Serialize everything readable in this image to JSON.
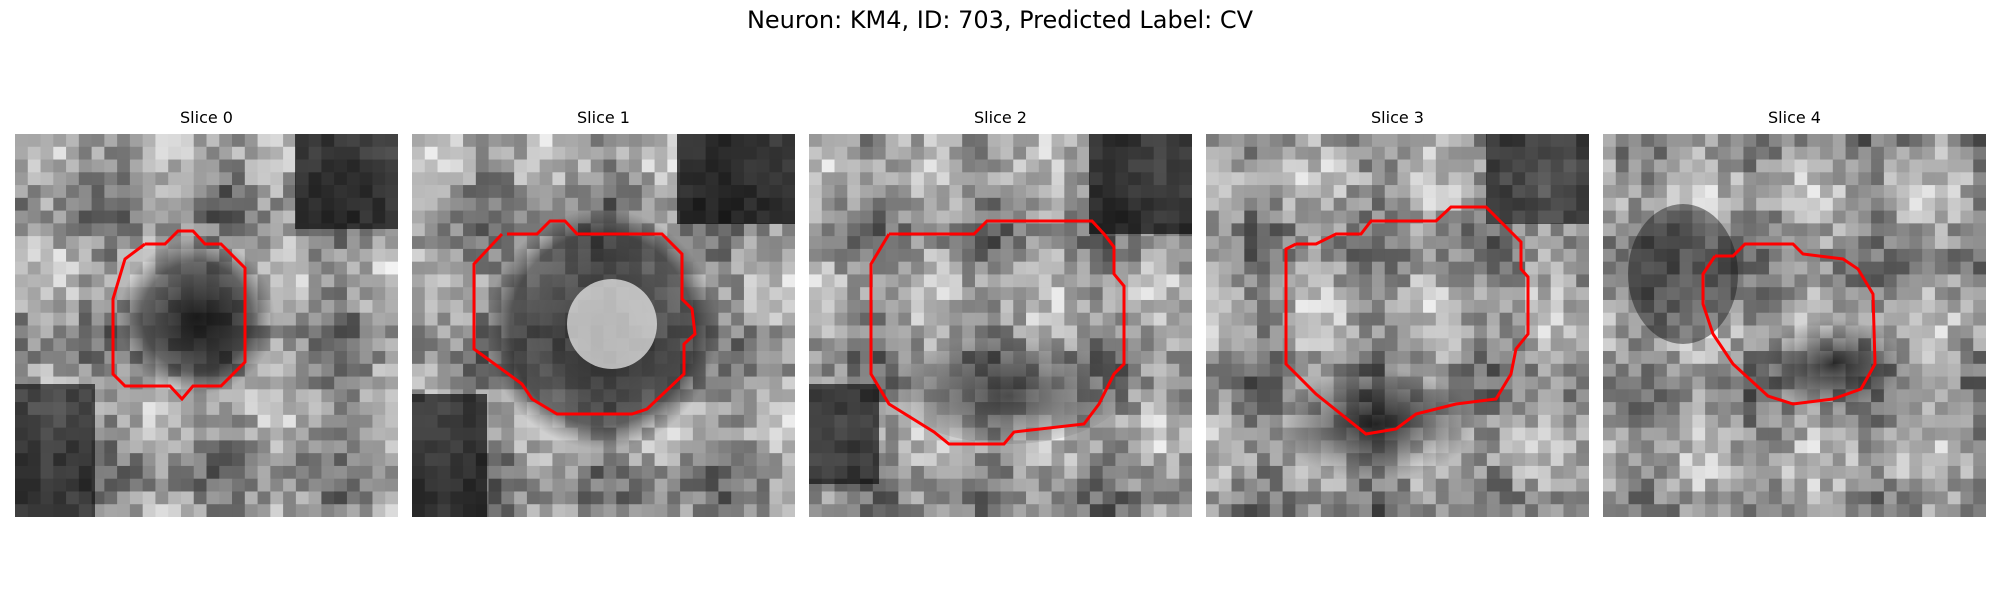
{
  "title": "Neuron: KM4, ID: 703, Predicted Label: CV",
  "colors": {
    "contour": "#ff0000",
    "background": "#ffffff"
  },
  "panels": [
    {
      "label": "Slice 0"
    },
    {
      "label": "Slice 1"
    },
    {
      "label": "Slice 2"
    },
    {
      "label": "Slice 3"
    },
    {
      "label": "Slice 4"
    }
  ]
}
